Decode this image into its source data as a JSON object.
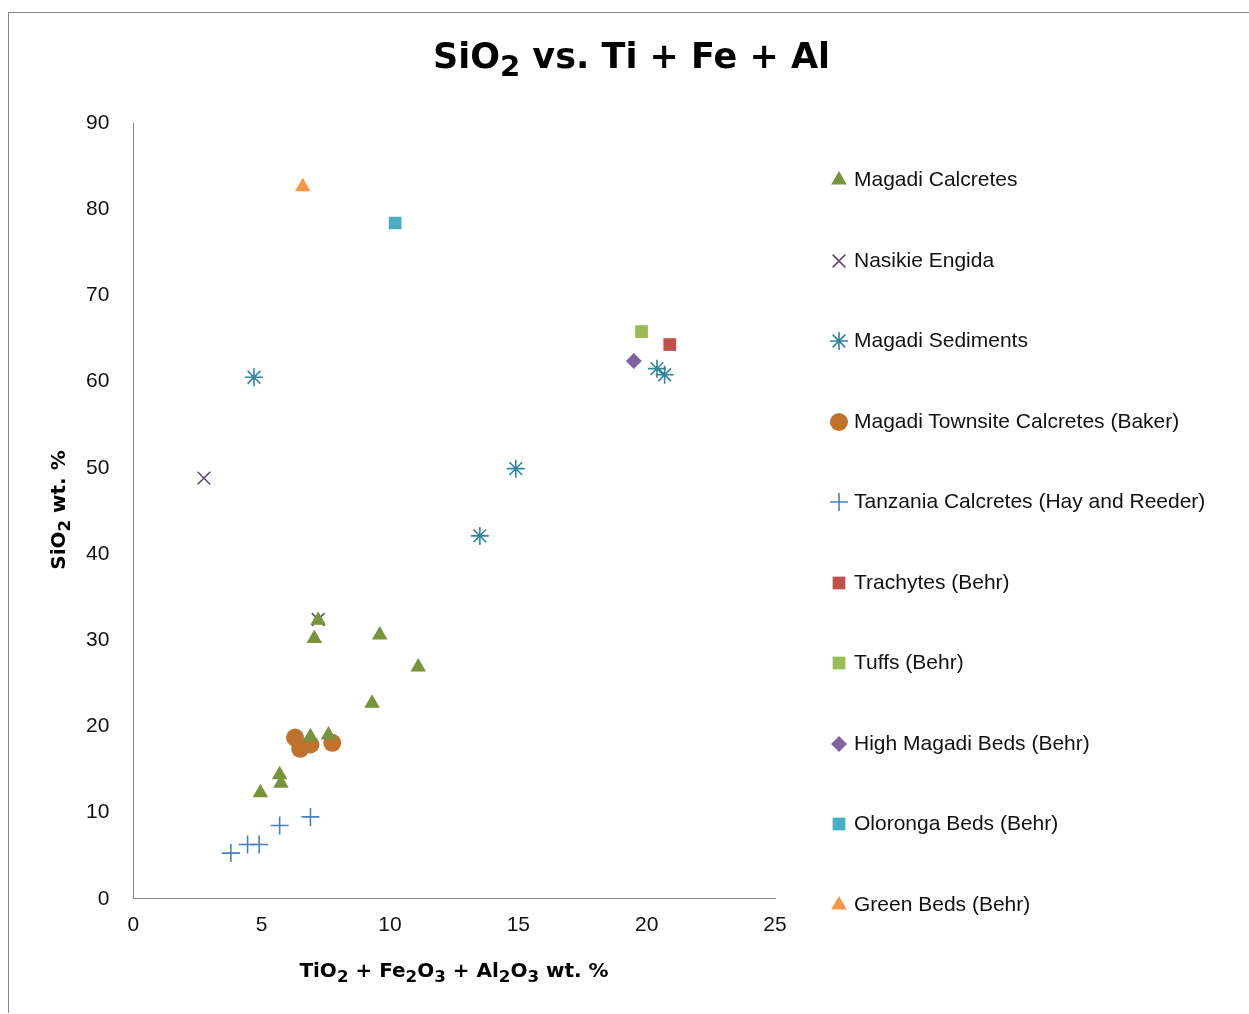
{
  "chart_data": {
    "type": "scatter",
    "title": "SiO$_{2}$ vs. Ti + Fe + Al",
    "xlabel": "TiO$_{2}$ + Fe$_{2}$O$_{3}$ + Al$_{2}$O$_{3}$ wt. %",
    "ylabel": "SiO$_{2}$  wt. %",
    "xlim": [
      0,
      25
    ],
    "xticks": [
      0,
      5,
      10,
      15,
      20,
      25
    ],
    "ylim": [
      0,
      90
    ],
    "yticks": [
      0,
      10,
      20,
      30,
      40,
      50,
      60,
      70,
      80,
      90
    ],
    "grid": false,
    "legend": "right",
    "series": [
      {
        "name": "Magadi Calcretes",
        "color": "#77933c",
        "marker": "triangle",
        "x": [
          7.2,
          7.05,
          9.6,
          11.1,
          9.3,
          6.9,
          7.6,
          5.7,
          5.75,
          4.95
        ],
        "values": [
          32.3,
          30.2,
          30.6,
          26.9,
          22.7,
          18.8,
          19.0,
          14.4,
          13.4,
          12.3
        ]
      },
      {
        "name": "Nasikie Engida",
        "color": "#604a7b",
        "marker": "x",
        "x": [
          2.75,
          7.2
        ],
        "values": [
          48.8,
          32.4
        ]
      },
      {
        "name": "Magadi Sediments",
        "color": "#31859c",
        "x": [
          4.7,
          14.9,
          13.5,
          20.4,
          20.7
        ],
        "values": [
          60.5,
          49.9,
          42.1,
          61.5,
          60.8
        ]
      },
      {
        "name": "Magadi Townsite Calcretes (Baker)",
        "color": "#c0722c",
        "marker": "circle",
        "x": [
          6.3,
          6.5,
          6.9,
          7.75
        ],
        "values": [
          18.7,
          17.4,
          17.9,
          18.1
        ]
      },
      {
        "name": "Tanzania Calcretes (Hay and Reeder)",
        "color": "#4a7ebb",
        "marker": "cross",
        "x": [
          3.8,
          4.45,
          4.9,
          5.7,
          6.9
        ],
        "values": [
          5.3,
          6.3,
          6.3,
          8.5,
          9.5
        ]
      },
      {
        "name": "Trachytes (Behr)",
        "color": "#c0504d",
        "marker": "square",
        "x": [
          20.9
        ],
        "values": [
          64.3
        ]
      },
      {
        "name": "Tuffs (Behr)",
        "color": "#9bbb59",
        "marker": "square",
        "x": [
          19.8
        ],
        "values": [
          65.8
        ]
      },
      {
        "name": "High Magadi Beds (Behr)",
        "color": "#8064a2",
        "marker": "diamond",
        "x": [
          19.5
        ],
        "values": [
          62.4
        ]
      },
      {
        "name": "Oloronga Beds (Behr)",
        "color": "#4bacc6",
        "marker": "square",
        "x": [
          10.2
        ],
        "values": [
          78.4
        ]
      },
      {
        "name": "Green Beds (Behr)",
        "color": "#f79646",
        "marker": "triangle",
        "x": [
          6.6
        ],
        "values": [
          82.6
        ]
      }
    ]
  }
}
